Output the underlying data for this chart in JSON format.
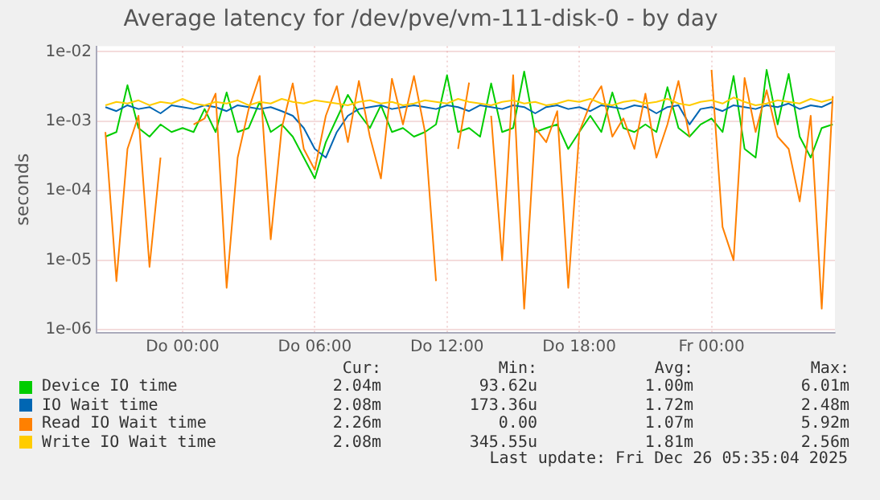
{
  "chart_data": {
    "type": "line",
    "title": "Average latency for /dev/pve/vm-111-disk-0 - by day",
    "ylabel": "seconds",
    "log": "y",
    "grid": true,
    "legend": "bottom",
    "x": [
      "2025-12-24T20:30",
      "2025-12-24T21:00",
      "2025-12-24T21:30",
      "2025-12-24T22:00",
      "2025-12-24T22:30",
      "2025-12-24T23:00",
      "2025-12-24T23:30",
      "2025-12-25T00:00",
      "2025-12-25T00:30",
      "2025-12-25T01:00",
      "2025-12-25T01:30",
      "2025-12-25T02:00",
      "2025-12-25T02:30",
      "2025-12-25T03:00",
      "2025-12-25T03:30",
      "2025-12-25T04:00",
      "2025-12-25T04:30",
      "2025-12-25T05:00",
      "2025-12-25T05:30",
      "2025-12-25T06:00",
      "2025-12-25T06:30",
      "2025-12-25T07:00",
      "2025-12-25T07:30",
      "2025-12-25T08:00",
      "2025-12-25T08:30",
      "2025-12-25T09:00",
      "2025-12-25T09:30",
      "2025-12-25T10:00",
      "2025-12-25T10:30",
      "2025-12-25T11:00",
      "2025-12-25T11:30",
      "2025-12-25T12:00",
      "2025-12-25T12:30",
      "2025-12-25T13:00",
      "2025-12-25T13:30",
      "2025-12-25T14:00",
      "2025-12-25T14:30",
      "2025-12-25T15:00",
      "2025-12-25T15:30",
      "2025-12-25T16:00",
      "2025-12-25T16:30",
      "2025-12-25T17:00",
      "2025-12-25T17:30",
      "2025-12-25T18:00",
      "2025-12-25T18:30",
      "2025-12-25T19:00",
      "2025-12-25T19:30",
      "2025-12-25T20:00",
      "2025-12-25T20:30",
      "2025-12-25T21:00",
      "2025-12-25T21:30",
      "2025-12-25T22:00",
      "2025-12-25T22:30",
      "2025-12-25T23:00",
      "2025-12-25T23:30",
      "2025-12-26T00:00",
      "2025-12-26T00:30",
      "2025-12-26T01:00",
      "2025-12-26T01:30",
      "2025-12-26T02:00",
      "2025-12-26T02:30",
      "2025-12-26T03:00",
      "2025-12-26T03:30",
      "2025-12-26T04:00",
      "2025-12-26T04:30",
      "2025-12-26T05:00",
      "2025-12-26T05:30"
    ],
    "xlim": [
      "2025-12-24T20:06",
      "2025-12-26T05:36"
    ],
    "xticks": [
      {
        "value": "2025-12-25T00:00",
        "label": "Do 00:00"
      },
      {
        "value": "2025-12-25T06:00",
        "label": "Do 06:00"
      },
      {
        "value": "2025-12-25T12:00",
        "label": "Do 12:00"
      },
      {
        "value": "2025-12-25T18:00",
        "label": "Do 18:00"
      },
      {
        "value": "2025-12-26T00:00",
        "label": "Fr 00:00"
      }
    ],
    "ylim": [
      9e-07,
      0.012
    ],
    "yticks": [
      {
        "value": 1e-06,
        "label": "1e-06"
      },
      {
        "value": 1e-05,
        "label": "1e-05"
      },
      {
        "value": 0.0001,
        "label": "1e-04"
      },
      {
        "value": 0.001,
        "label": "1e-03"
      },
      {
        "value": 0.01,
        "label": "1e-02"
      }
    ],
    "series": [
      {
        "name": "Device IO time",
        "color": "#00cc00",
        "values": [
          0.0006,
          0.0007,
          0.0033,
          0.0008,
          0.0006,
          0.0009,
          0.0007,
          0.0008,
          0.0007,
          0.0015,
          0.0007,
          0.0026,
          0.0007,
          0.0008,
          0.0019,
          0.0007,
          0.0009,
          0.0006,
          0.0003,
          0.00015,
          0.0005,
          0.0011,
          0.0024,
          0.0013,
          0.0008,
          0.0017,
          0.0007,
          0.0008,
          0.0006,
          0.0007,
          0.0009,
          0.0046,
          0.0007,
          0.0008,
          0.0006,
          0.0035,
          0.0007,
          0.0008,
          0.0052,
          0.0007,
          0.0008,
          0.0009,
          0.0004,
          0.0007,
          0.0012,
          0.0007,
          0.0026,
          0.0008,
          0.0007,
          0.0009,
          0.0007,
          0.0031,
          0.0008,
          0.0006,
          0.0009,
          0.0011,
          0.0007,
          0.0045,
          0.0004,
          0.0003,
          0.0055,
          0.0009,
          0.0048,
          0.0006,
          0.0003,
          0.0008,
          0.0009
        ]
      },
      {
        "name": "IO Wait time",
        "color": "#0066b3",
        "values": [
          0.0016,
          0.0014,
          0.0017,
          0.0015,
          0.0016,
          0.0013,
          0.0017,
          0.0016,
          0.0015,
          0.0017,
          0.0016,
          0.0014,
          0.0017,
          0.0016,
          0.0015,
          0.0016,
          0.0014,
          0.0012,
          0.0008,
          0.0004,
          0.0003,
          0.0007,
          0.0012,
          0.0015,
          0.0016,
          0.0017,
          0.0015,
          0.0016,
          0.0017,
          0.0016,
          0.0015,
          0.0017,
          0.0016,
          0.0014,
          0.0017,
          0.0016,
          0.0015,
          0.0017,
          0.0016,
          0.0013,
          0.0016,
          0.0017,
          0.0015,
          0.0016,
          0.0014,
          0.0017,
          0.0016,
          0.0015,
          0.0017,
          0.0016,
          0.0013,
          0.0016,
          0.0017,
          0.0009,
          0.0015,
          0.0016,
          0.0014,
          0.0017,
          0.0016,
          0.0015,
          0.0017,
          0.0016,
          0.0018,
          0.0015,
          0.0017,
          0.0016,
          0.0019
        ]
      },
      {
        "name": "Read IO Wait time",
        "color": "#ff8000",
        "values": [
          0.0007,
          5e-06,
          0.0004,
          0.0012,
          8e-06,
          0.0003,
          null,
          null,
          0.0009,
          0.0011,
          0.0025,
          4e-06,
          0.0003,
          0.0015,
          0.0045,
          2e-05,
          0.0008,
          0.0035,
          0.0004,
          0.0002,
          0.0012,
          0.0032,
          0.0005,
          0.0038,
          0.0006,
          0.00015,
          0.0041,
          0.0009,
          0.0045,
          0.0007,
          5e-06,
          null,
          0.0004,
          0.0036,
          null,
          0.0012,
          1e-05,
          0.0046,
          2e-06,
          0.0008,
          0.0005,
          0.0014,
          4e-06,
          0.0007,
          0.0018,
          0.0032,
          0.0006,
          0.0011,
          0.0004,
          0.0025,
          0.0003,
          0.0009,
          0.0038,
          0.0006,
          null,
          0.0055,
          3e-05,
          1e-05,
          0.0042,
          0.0007,
          0.0028,
          0.0006,
          0.0004,
          7e-05,
          0.0012,
          2e-06,
          0.0023
        ]
      },
      {
        "name": "Write IO Wait time",
        "color": "#ffcc00",
        "values": [
          0.0017,
          0.0019,
          0.0018,
          0.002,
          0.0017,
          0.0019,
          0.0018,
          0.0021,
          0.0018,
          0.0017,
          0.0019,
          0.0018,
          0.002,
          0.0017,
          0.0019,
          0.0018,
          0.0021,
          0.0019,
          0.0018,
          0.002,
          0.0019,
          0.0018,
          0.0017,
          0.0019,
          0.002,
          0.0018,
          0.0019,
          0.0017,
          0.0018,
          0.002,
          0.0019,
          0.0018,
          0.0021,
          0.0019,
          0.0018,
          0.0017,
          0.0019,
          0.002,
          0.0018,
          0.0019,
          0.0017,
          0.0018,
          0.002,
          0.0019,
          0.0021,
          0.0018,
          0.0017,
          0.0019,
          0.002,
          0.0018,
          0.0019,
          0.0021,
          0.0018,
          0.0017,
          0.0019,
          0.002,
          0.0018,
          0.0022,
          0.0019,
          0.0017,
          0.0018,
          0.002,
          0.0019,
          0.0018,
          0.0021,
          0.0019,
          0.0021
        ]
      }
    ],
    "annotations": [
      "Cur:",
      "Min:",
      "Avg:",
      "Max:",
      "2.04m",
      "93.62u",
      "1.00m",
      "6.01m",
      "2.08m",
      "173.36u",
      "1.72m",
      "2.48m",
      "2.26m",
      "0.00",
      "1.07m",
      "5.92m",
      "2.08m",
      "345.55u",
      "1.81m",
      "2.56m",
      "Last update: Fri Dec 26 05:35:04 2025"
    ]
  }
}
